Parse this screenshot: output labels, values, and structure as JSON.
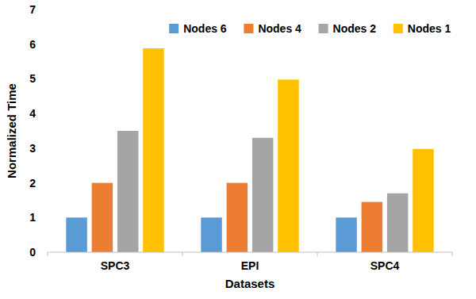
{
  "chart_data": {
    "type": "bar",
    "x_label": "Datasets",
    "y_label": "Normalized Time",
    "categories": [
      "SPC3",
      "EPI",
      "SPC4"
    ],
    "series": [
      {
        "name": "Nodes 6",
        "color": "#5b9bd5",
        "values": [
          1,
          1,
          1
        ]
      },
      {
        "name": "Nodes 4",
        "color": "#ed7d31",
        "values": [
          2,
          2,
          1.45
        ]
      },
      {
        "name": "Nodes 2",
        "color": "#a5a5a5",
        "values": [
          3.5,
          3.3,
          1.7
        ]
      },
      {
        "name": "Nodes 1",
        "color": "#ffc000",
        "values": [
          5.88,
          4.98,
          2.98
        ]
      }
    ],
    "ylim": [
      0,
      7
    ],
    "yticks": [
      0,
      1,
      2,
      3,
      4,
      5,
      6,
      7
    ],
    "grid": false,
    "legend": "top-right"
  }
}
